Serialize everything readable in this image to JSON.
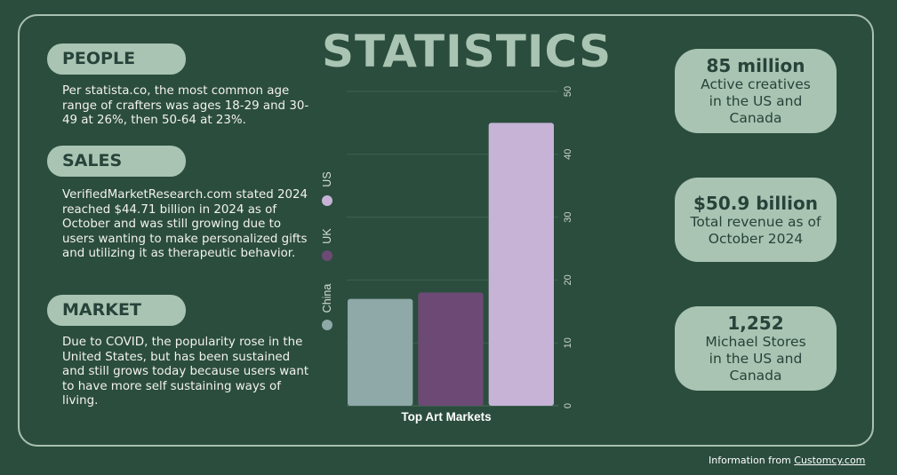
{
  "page": {
    "title": "STATISTICS",
    "footer_prefix": "Information from",
    "footer_link": "Customcy.com"
  },
  "sections": [
    {
      "heading": "PEOPLE",
      "text": "Per statista.co, the most common age range of crafters was ages 18-29 and 30-49 at 26%, then 50-64 at 23%."
    },
    {
      "heading": "SALES",
      "text": "VerifiedMarketResearch.com stated 2024 reached $44.71 billion in 2024 as of October and was still growing due to users wanting to make personalized gifts and utilizing it as therapeutic behavior."
    },
    {
      "heading": "MARKET",
      "text": "Due to COVID, the popularity rose in the United States, but has been sustained and still grows today because users want to have more self sustaining ways of living."
    }
  ],
  "stats": [
    {
      "value": "85 million",
      "label": "Active creatives in the US and Canada"
    },
    {
      "value": "$50.9 billion",
      "label": "Total revenue as of October 2024"
    },
    {
      "value": "1,252",
      "label": "Michael Stores in the US and Canada"
    }
  ],
  "colors": {
    "background": "#2b4d3d",
    "accent": "#a9c4b2",
    "china": "#8fa8a8",
    "uk": "#6c4a75",
    "us": "#c6b3d6"
  },
  "chart_data": {
    "type": "bar",
    "title": "",
    "xlabel": "Top Art Markets",
    "ylabel": "",
    "categories": [
      "China",
      "UK",
      "US"
    ],
    "values": [
      17,
      18,
      45
    ],
    "ylim": [
      0,
      50
    ],
    "yticks": [
      0,
      10,
      20,
      30,
      40,
      50
    ],
    "grid": true,
    "legend": {
      "position": "left",
      "entries": [
        "China",
        "UK",
        "US"
      ]
    }
  }
}
